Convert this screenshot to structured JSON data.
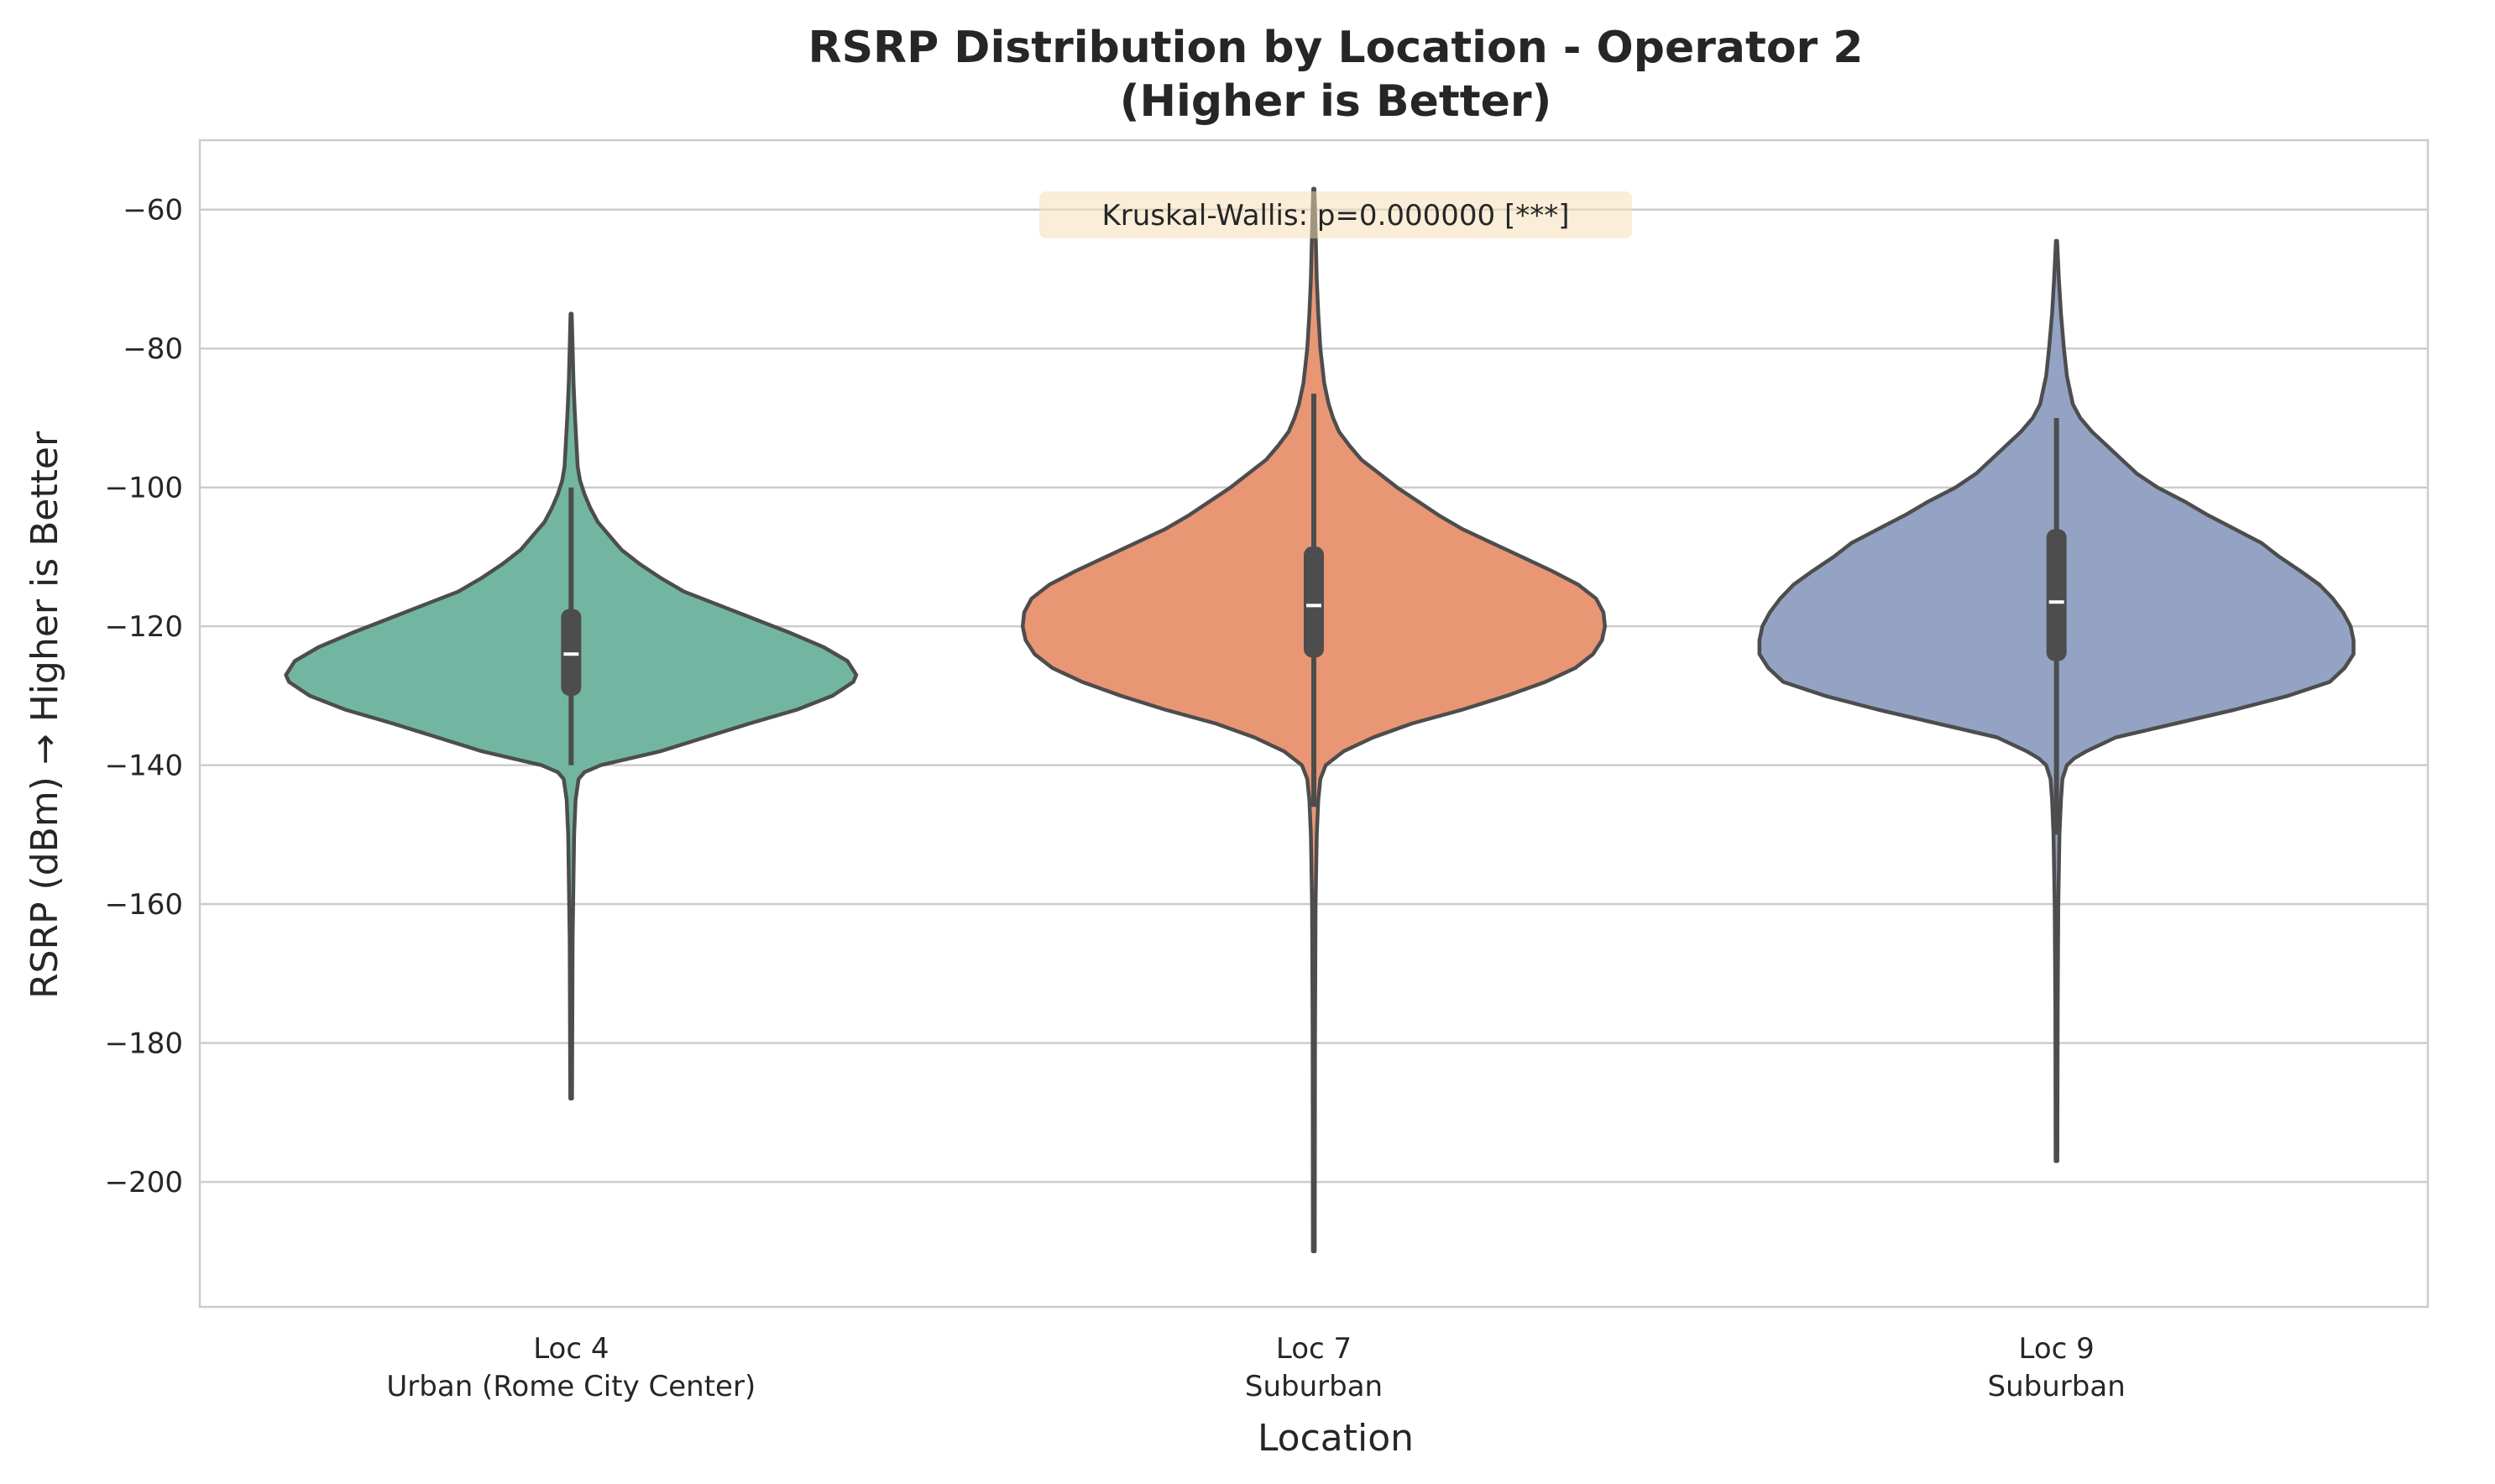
{
  "chart_data": {
    "type": "violin",
    "title_line1": "RSRP Distribution by Location - Operator 2",
    "title_line2": "(Higher is Better)",
    "xlabel": "Location",
    "ylabel": "RSRP (dBm) → Higher is Better",
    "ylim": [
      -218,
      -50
    ],
    "yticks": [
      -60,
      -80,
      -100,
      -120,
      -140,
      -160,
      -180,
      -200
    ],
    "ytick_labels": [
      "−60",
      "−80",
      "−100",
      "−120",
      "−140",
      "−160",
      "−180",
      "−200"
    ],
    "grid": "horizontal",
    "annotation": "Kruskal-Wallis: p=0.000000 [***]",
    "categories": [
      {
        "line1": "Loc 4",
        "line2": "Urban (Rome City Center)",
        "color": "#72b6a1",
        "min": -188,
        "max": -75,
        "q1": -130,
        "median": -124,
        "q3": -117.5,
        "whisker_low": -140,
        "whisker_high": -100,
        "profile": [
          [
            -188,
            0.003
          ],
          [
            -165,
            0.005
          ],
          [
            -150,
            0.01
          ],
          [
            -145,
            0.015
          ],
          [
            -142,
            0.025
          ],
          [
            -141,
            0.045
          ],
          [
            -140,
            0.1
          ],
          [
            -138,
            0.3
          ],
          [
            -136,
            0.45
          ],
          [
            -134,
            0.6
          ],
          [
            -132,
            0.76
          ],
          [
            -130,
            0.88
          ],
          [
            -128,
            0.95
          ],
          [
            -127,
            0.96
          ],
          [
            -125,
            0.93
          ],
          [
            -123,
            0.85
          ],
          [
            -121,
            0.74
          ],
          [
            -119,
            0.62
          ],
          [
            -117,
            0.5
          ],
          [
            -115,
            0.38
          ],
          [
            -113,
            0.3
          ],
          [
            -111,
            0.23
          ],
          [
            -109,
            0.17
          ],
          [
            -107,
            0.13
          ],
          [
            -105,
            0.09
          ],
          [
            -103,
            0.065
          ],
          [
            -101,
            0.045
          ],
          [
            -99,
            0.03
          ],
          [
            -97,
            0.022
          ],
          [
            -93,
            0.017
          ],
          [
            -89,
            0.012
          ],
          [
            -85,
            0.008
          ],
          [
            -80,
            0.005
          ],
          [
            -75,
            0.002
          ]
        ]
      },
      {
        "line1": "Loc 7",
        "line2": "Suburban",
        "color": "#e99675",
        "min": -210,
        "max": -57,
        "q1": -124.5,
        "median": -117,
        "q3": -108.5,
        "whisker_low": -146,
        "whisker_high": -86.5,
        "profile": [
          [
            -210,
            0.003
          ],
          [
            -180,
            0.004
          ],
          [
            -160,
            0.006
          ],
          [
            -150,
            0.01
          ],
          [
            -145,
            0.015
          ],
          [
            -142,
            0.022
          ],
          [
            -140,
            0.04
          ],
          [
            -139,
            0.07
          ],
          [
            -138,
            0.1
          ],
          [
            -136,
            0.2
          ],
          [
            -134,
            0.33
          ],
          [
            -132,
            0.5
          ],
          [
            -130,
            0.65
          ],
          [
            -128,
            0.78
          ],
          [
            -126,
            0.88
          ],
          [
            -124,
            0.94
          ],
          [
            -122,
            0.97
          ],
          [
            -120,
            0.98
          ],
          [
            -118,
            0.975
          ],
          [
            -116,
            0.95
          ],
          [
            -114,
            0.89
          ],
          [
            -112,
            0.8
          ],
          [
            -110,
            0.7
          ],
          [
            -108,
            0.6
          ],
          [
            -106,
            0.5
          ],
          [
            -104,
            0.42
          ],
          [
            -102,
            0.35
          ],
          [
            -100,
            0.28
          ],
          [
            -98,
            0.22
          ],
          [
            -96,
            0.16
          ],
          [
            -94,
            0.12
          ],
          [
            -92,
            0.085
          ],
          [
            -90,
            0.065
          ],
          [
            -88,
            0.05
          ],
          [
            -85,
            0.035
          ],
          [
            -80,
            0.022
          ],
          [
            -75,
            0.015
          ],
          [
            -70,
            0.01
          ],
          [
            -65,
            0.007
          ],
          [
            -60,
            0.004
          ],
          [
            -57,
            0.002
          ]
        ]
      },
      {
        "line1": "Loc 9",
        "line2": "Suburban",
        "color": "#94a3c3",
        "min": -197,
        "max": -64.5,
        "q1": -125,
        "median": -116.5,
        "q3": -106,
        "whisker_low": -150,
        "whisker_high": -90,
        "profile": [
          [
            -197,
            0.003
          ],
          [
            -175,
            0.004
          ],
          [
            -160,
            0.006
          ],
          [
            -150,
            0.01
          ],
          [
            -145,
            0.015
          ],
          [
            -142,
            0.02
          ],
          [
            -140,
            0.035
          ],
          [
            -139,
            0.06
          ],
          [
            -138,
            0.1
          ],
          [
            -136,
            0.2
          ],
          [
            -134,
            0.4
          ],
          [
            -132,
            0.6
          ],
          [
            -130,
            0.78
          ],
          [
            -128,
            0.92
          ],
          [
            -126,
            0.97
          ],
          [
            -124,
            1.0
          ],
          [
            -122,
            1.0
          ],
          [
            -120,
            0.99
          ],
          [
            -118,
            0.965
          ],
          [
            -116,
            0.93
          ],
          [
            -114,
            0.885
          ],
          [
            -112,
            0.82
          ],
          [
            -110,
            0.75
          ],
          [
            -108,
            0.69
          ],
          [
            -106,
            0.6
          ],
          [
            -104,
            0.51
          ],
          [
            -102,
            0.43
          ],
          [
            -100,
            0.34
          ],
          [
            -98,
            0.27
          ],
          [
            -96,
            0.22
          ],
          [
            -94,
            0.17
          ],
          [
            -92,
            0.12
          ],
          [
            -90,
            0.08
          ],
          [
            -88,
            0.055
          ],
          [
            -86,
            0.045
          ],
          [
            -84,
            0.035
          ],
          [
            -80,
            0.025
          ],
          [
            -75,
            0.015
          ],
          [
            -70,
            0.008
          ],
          [
            -64.5,
            0.002
          ]
        ]
      }
    ]
  }
}
